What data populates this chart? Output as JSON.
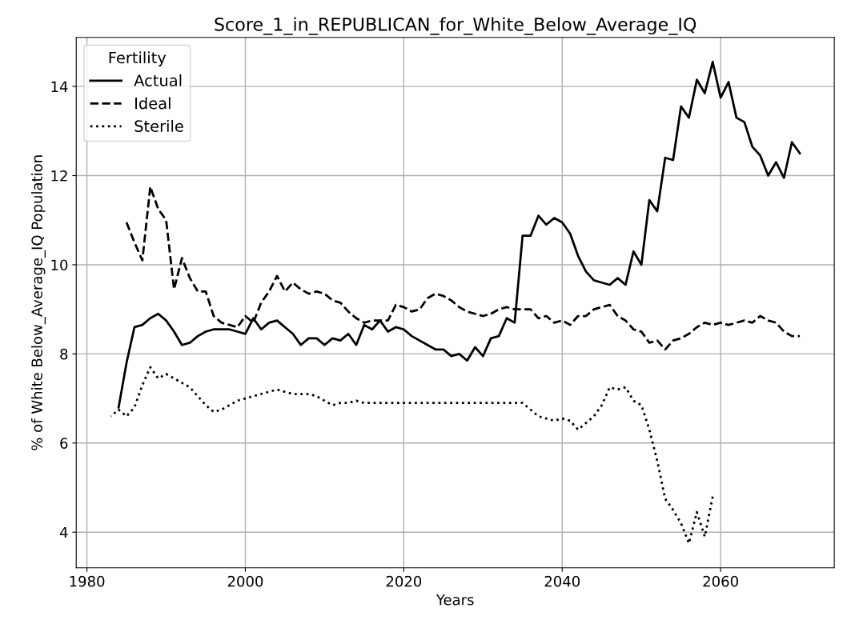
{
  "chart_data": {
    "type": "line",
    "title": "Score_1_in_REPUBLICAN_for_White_Below_Average_IQ",
    "xlabel": "Years",
    "ylabel": "% of White Below_Average_IQ Population",
    "legend_title": "Fertility",
    "legend": "top left",
    "grid": true,
    "xlim": [
      1978.65,
      2074.35
    ],
    "xticks": [
      1980,
      2000,
      2020,
      2040,
      2060
    ],
    "ylim": [
      3.2,
      15.1
    ],
    "yticks": [
      4,
      6,
      8,
      10,
      12,
      14
    ],
    "series": [
      {
        "name": "Actual",
        "color": "#000000",
        "line_style": "solid",
        "x": [
          1984,
          1985,
          1986,
          1987,
          1988,
          1989,
          1990,
          1991,
          1992,
          1993,
          1994,
          1995,
          1996,
          1997,
          1998,
          1999,
          2000,
          2001,
          2002,
          2003,
          2004,
          2005,
          2006,
          2007,
          2008,
          2009,
          2010,
          2011,
          2012,
          2013,
          2014,
          2015,
          2016,
          2017,
          2018,
          2019,
          2020,
          2021,
          2022,
          2023,
          2024,
          2025,
          2026,
          2027,
          2028,
          2029,
          2030,
          2031,
          2032,
          2033,
          2034,
          2035,
          2036,
          2037,
          2038,
          2039,
          2040,
          2041,
          2042,
          2043,
          2044,
          2045,
          2046,
          2047,
          2048,
          2049,
          2050,
          2051,
          2052,
          2053,
          2054,
          2055,
          2056,
          2057,
          2058,
          2059,
          2060,
          2061,
          2062,
          2063,
          2064,
          2065,
          2066,
          2067,
          2068,
          2069,
          2070
        ],
        "values": [
          6.8,
          7.8,
          8.6,
          8.65,
          8.8,
          8.9,
          8.75,
          8.5,
          8.2,
          8.25,
          8.4,
          8.5,
          8.55,
          8.55,
          8.55,
          8.5,
          8.45,
          8.8,
          8.55,
          8.7,
          8.75,
          8.6,
          8.45,
          8.2,
          8.35,
          8.35,
          8.2,
          8.35,
          8.3,
          8.45,
          8.2,
          8.65,
          8.55,
          8.75,
          8.5,
          8.6,
          8.55,
          8.4,
          8.3,
          8.2,
          8.1,
          8.1,
          7.95,
          8.0,
          7.85,
          8.15,
          7.95,
          8.35,
          8.4,
          8.8,
          8.7,
          10.65,
          10.65,
          11.1,
          10.9,
          11.05,
          10.95,
          10.7,
          10.2,
          9.85,
          9.65,
          9.6,
          9.55,
          9.7,
          9.55,
          10.3,
          10.0,
          11.45,
          11.2,
          12.4,
          12.35,
          13.55,
          13.3,
          14.15,
          13.85,
          14.55,
          13.75,
          14.1,
          13.3,
          13.2,
          12.65,
          12.45,
          12.0,
          12.3,
          11.95,
          12.75,
          12.5
        ]
      },
      {
        "name": "Ideal",
        "color": "#000000",
        "line_style": "dashed",
        "x": [
          1985,
          1986,
          1987,
          1988,
          1989,
          1990,
          1991,
          1992,
          1993,
          1994,
          1995,
          1996,
          1997,
          1998,
          1999,
          2000,
          2001,
          2002,
          2003,
          2004,
          2005,
          2006,
          2007,
          2008,
          2009,
          2010,
          2011,
          2012,
          2013,
          2014,
          2015,
          2016,
          2017,
          2018,
          2019,
          2020,
          2021,
          2022,
          2023,
          2024,
          2025,
          2026,
          2027,
          2028,
          2029,
          2030,
          2031,
          2032,
          2033,
          2034,
          2035,
          2036,
          2037,
          2038,
          2039,
          2040,
          2041,
          2042,
          2043,
          2044,
          2045,
          2046,
          2047,
          2048,
          2049,
          2050,
          2051,
          2052,
          2053,
          2054,
          2055,
          2056,
          2057,
          2058,
          2059,
          2060,
          2061,
          2062,
          2063,
          2064,
          2065,
          2066,
          2067,
          2068,
          2069,
          2070
        ],
        "values": [
          10.95,
          10.5,
          10.1,
          11.75,
          11.25,
          11.0,
          9.45,
          10.15,
          9.7,
          9.4,
          9.4,
          8.85,
          8.7,
          8.65,
          8.6,
          8.85,
          8.7,
          9.15,
          9.4,
          9.75,
          9.4,
          9.6,
          9.45,
          9.35,
          9.4,
          9.35,
          9.2,
          9.15,
          8.95,
          8.8,
          8.7,
          8.75,
          8.75,
          8.75,
          9.1,
          9.05,
          8.95,
          9.0,
          9.25,
          9.35,
          9.3,
          9.2,
          9.05,
          8.95,
          8.9,
          8.85,
          8.9,
          9.0,
          9.05,
          9.0,
          9.0,
          9.0,
          8.8,
          8.85,
          8.7,
          8.75,
          8.65,
          8.85,
          8.85,
          9.0,
          9.05,
          9.1,
          8.85,
          8.75,
          8.55,
          8.5,
          8.25,
          8.3,
          8.1,
          8.3,
          8.35,
          8.45,
          8.6,
          8.7,
          8.65,
          8.7,
          8.65,
          8.7,
          8.75,
          8.7,
          8.85,
          8.75,
          8.7,
          8.5,
          8.4,
          8.4
        ]
      },
      {
        "name": "Sterile",
        "color": "#000000",
        "line_style": "dotted",
        "x": [
          1983,
          1984,
          1985,
          1986,
          1987,
          1988,
          1989,
          1990,
          1991,
          1992,
          1993,
          1994,
          1995,
          1996,
          1997,
          1998,
          1999,
          2000,
          2001,
          2002,
          2003,
          2004,
          2005,
          2006,
          2007,
          2008,
          2009,
          2010,
          2011,
          2012,
          2013,
          2014,
          2015,
          2016,
          2018,
          2020,
          2022,
          2024,
          2026,
          2028,
          2030,
          2032,
          2034,
          2035,
          2036,
          2037,
          2038,
          2039,
          2040,
          2041,
          2042,
          2043,
          2044,
          2045,
          2046,
          2047,
          2048,
          2049,
          2050,
          2051,
          2052,
          2053,
          2054,
          2055,
          2056,
          2057,
          2058,
          2059
        ],
        "values": [
          6.6,
          6.75,
          6.6,
          6.8,
          7.3,
          7.7,
          7.45,
          7.55,
          7.45,
          7.35,
          7.25,
          7.05,
          6.85,
          6.7,
          6.75,
          6.85,
          6.95,
          7.0,
          7.05,
          7.1,
          7.15,
          7.2,
          7.15,
          7.1,
          7.1,
          7.1,
          7.05,
          6.95,
          6.85,
          6.9,
          6.9,
          6.95,
          6.9,
          6.9,
          6.9,
          6.9,
          6.9,
          6.9,
          6.9,
          6.9,
          6.9,
          6.9,
          6.9,
          6.9,
          6.75,
          6.6,
          6.55,
          6.5,
          6.55,
          6.5,
          6.3,
          6.45,
          6.6,
          6.85,
          7.25,
          7.2,
          7.25,
          6.95,
          6.85,
          6.3,
          5.6,
          4.75,
          4.5,
          4.2,
          3.75,
          4.45,
          3.9,
          4.8
        ]
      }
    ]
  }
}
